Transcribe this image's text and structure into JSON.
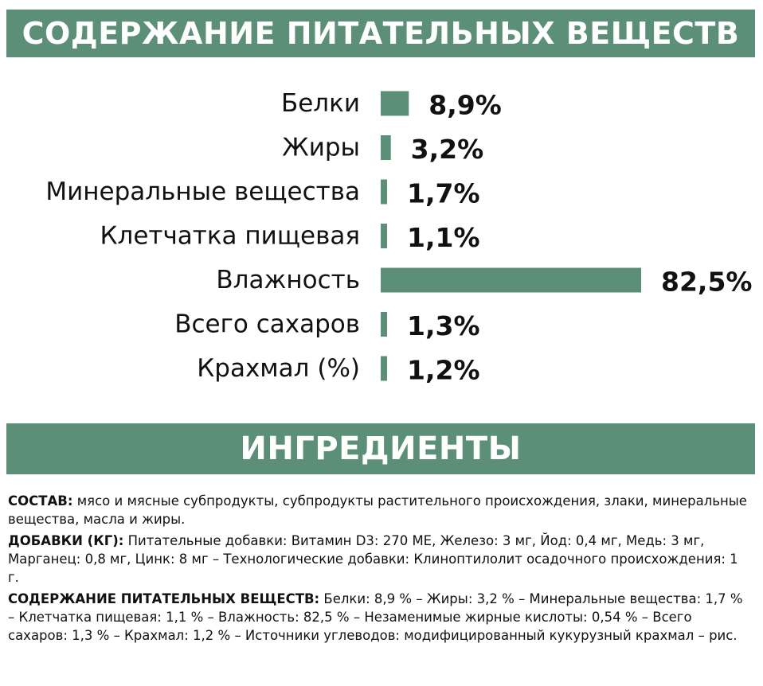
{
  "header": {
    "nutrients_title": "СОДЕРЖАНИЕ ПИТАТЕЛЬНЫХ ВЕЩЕСТВ",
    "ingredients_title": "ИНГРЕДИЕНТЫ"
  },
  "colors": {
    "accent": "#5b8f78",
    "text": "#111111"
  },
  "chart_data": {
    "type": "bar",
    "orientation": "horizontal",
    "categories": [
      "Белки",
      "Жиры",
      "Минеральные вещества",
      "Клетчатка пищевая",
      "Влажность",
      "Всего сахаров",
      "Крахмал (%)"
    ],
    "values": [
      8.9,
      3.2,
      1.7,
      1.1,
      82.5,
      1.3,
      1.2
    ],
    "value_labels": [
      "8,9%",
      "3,2%",
      "1,7%",
      "1,1%",
      "82,5%",
      "1,3%",
      "1,2%"
    ],
    "title": "",
    "xlabel": "",
    "ylabel": "",
    "grid": false,
    "legend": "none"
  },
  "ingredients": [
    {
      "label": "СОСТАВ:",
      "text": " мясо и мясные субпродукты, субпродукты растительного происхождения, злаки, минеральные вещества, масла и жиры."
    },
    {
      "label": "ДОБАВКИ (КГ):",
      "text": " Питательные добавки: Витамин D3: 270 МЕ, Железо: 3 мг, Йод: 0,4 мг, Медь: 3 мг, Марганец: 0,8 мг, Цинк: 8 мг – Технологические добавки: Клиноптилолит осадочного происхождения: 1 г."
    },
    {
      "label": "СОДЕРЖАНИЕ ПИТАТЕЛЬНЫХ ВЕЩЕСТВ:",
      "text": " Белки: 8,9 % – Жиры: 3,2 % – Минеральные вещества: 1,7 % – Клетчатка пищевая: 1,1 % – Влажность: 82,5 % – Незаменимые жирные кислоты: 0,54 % – Всего сахаров: 1,3 % – Крахмал: 1,2 % – Источники углеводов: модифицированный кукурузный крахмал – рис."
    }
  ]
}
